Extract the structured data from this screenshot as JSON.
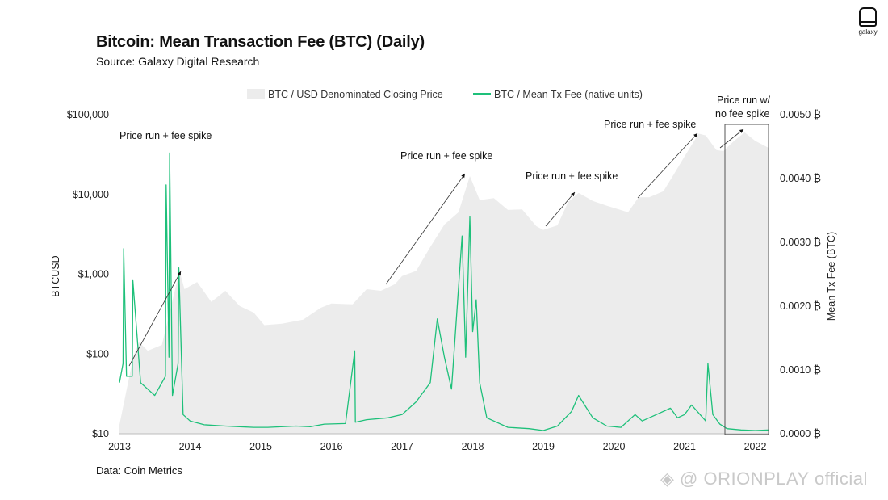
{
  "header": {
    "title": "Bitcoin: Mean Transaction Fee (BTC) (Daily)",
    "subtitle": "Source: Galaxy Digital Research"
  },
  "footer": {
    "note": "Data: Coin Metrics"
  },
  "logo": {
    "text": "galaxy",
    "icon": "galaxy-logo-icon"
  },
  "watermark": {
    "text": "@ ORIONPLAY official",
    "icon": "diamond-logo-icon"
  },
  "colors": {
    "price_area": "#ececec",
    "fee_line": "#1ec07a",
    "box": "#555555"
  },
  "chart_data": {
    "type": "area",
    "x_ticks": [
      "2013",
      "2014",
      "2015",
      "2016",
      "2017",
      "2018",
      "2019",
      "2020",
      "2021",
      "2022"
    ],
    "y_left": {
      "label": "BTCUSD",
      "scale": "log",
      "range": [
        10,
        100000
      ],
      "ticks": [
        "$10",
        "$100",
        "$1,000",
        "$10,000",
        "$100,000"
      ]
    },
    "y_right": {
      "label": "Mean Tx Fee (BTC)",
      "range": [
        0,
        0.005
      ],
      "ticks": [
        "0.0000 ₿",
        "0.0010 ₿",
        "0.0020 ₿",
        "0.0030 ₿",
        "0.0040 ₿",
        "0.0050 ₿"
      ]
    },
    "legend": {
      "placement": "top-center",
      "items": [
        "BTC / USD Denominated Closing Price",
        "BTC / Mean Tx Fee (native units)"
      ]
    },
    "series": [
      {
        "name": "BTC / USD Denominated Closing Price",
        "axis": "left",
        "x": [
          2013.0,
          2013.2,
          2013.28,
          2013.4,
          2013.6,
          2013.85,
          2013.92,
          2014.1,
          2014.3,
          2014.5,
          2014.7,
          2014.9,
          2015.05,
          2015.3,
          2015.6,
          2015.85,
          2016.0,
          2016.3,
          2016.5,
          2016.7,
          2016.9,
          2017.0,
          2017.2,
          2017.4,
          2017.6,
          2017.8,
          2017.96,
          2018.1,
          2018.3,
          2018.5,
          2018.7,
          2018.9,
          2019.0,
          2019.2,
          2019.35,
          2019.5,
          2019.7,
          2019.9,
          2020.2,
          2020.35,
          2020.5,
          2020.7,
          2020.85,
          2021.0,
          2021.2,
          2021.3,
          2021.45,
          2021.55,
          2021.7,
          2021.85,
          2022.0,
          2022.2
        ],
        "values": [
          13,
          95,
          140,
          110,
          130,
          1100,
          650,
          800,
          450,
          620,
          400,
          330,
          230,
          240,
          270,
          380,
          430,
          420,
          650,
          620,
          750,
          950,
          1100,
          2200,
          4200,
          6000,
          17000,
          8500,
          9000,
          6400,
          6500,
          4000,
          3600,
          4100,
          8000,
          10500,
          8300,
          7200,
          6000,
          9200,
          9200,
          11000,
          18000,
          30000,
          58000,
          55000,
          36000,
          35000,
          47000,
          60000,
          47000,
          38000
        ]
      },
      {
        "name": "BTC / Mean Tx Fee (native units)",
        "axis": "right",
        "x": [
          2013.0,
          2013.05,
          2013.06,
          2013.1,
          2013.18,
          2013.19,
          2013.3,
          2013.5,
          2013.65,
          2013.66,
          2013.7,
          2013.71,
          2013.75,
          2013.83,
          2013.84,
          2013.9,
          2014.0,
          2014.2,
          2014.5,
          2014.7,
          2014.9,
          2015.1,
          2015.5,
          2015.7,
          2015.9,
          2016.2,
          2016.33,
          2016.34,
          2016.5,
          2016.8,
          2017.0,
          2017.2,
          2017.4,
          2017.5,
          2017.6,
          2017.7,
          2017.85,
          2017.9,
          2017.96,
          2018.0,
          2018.05,
          2018.1,
          2018.2,
          2018.5,
          2018.8,
          2019.0,
          2019.2,
          2019.4,
          2019.5,
          2019.7,
          2019.9,
          2020.1,
          2020.3,
          2020.4,
          2020.6,
          2020.8,
          2020.9,
          2021.0,
          2021.1,
          2021.3,
          2021.33,
          2021.4,
          2021.5,
          2021.6,
          2021.8,
          2022.0,
          2022.2
        ],
        "values": [
          0.0008,
          0.0011,
          0.0029,
          0.0009,
          0.0009,
          0.0024,
          0.0008,
          0.0006,
          0.0009,
          0.0039,
          0.0012,
          0.0044,
          0.0006,
          0.0011,
          0.0026,
          0.0003,
          0.0002,
          0.00014,
          0.00012,
          0.00011,
          0.0001,
          0.0001,
          0.00012,
          0.00011,
          0.00015,
          0.00016,
          0.0013,
          0.00018,
          0.00022,
          0.00025,
          0.0003,
          0.0005,
          0.0008,
          0.0018,
          0.0012,
          0.0007,
          0.0031,
          0.0012,
          0.0034,
          0.0016,
          0.0021,
          0.0008,
          0.00025,
          0.0001,
          8e-05,
          5e-05,
          0.00012,
          0.00035,
          0.0006,
          0.00025,
          0.00012,
          0.0001,
          0.0003,
          0.0002,
          0.0003,
          0.0004,
          0.00025,
          0.0003,
          0.00045,
          0.0002,
          0.0011,
          0.0003,
          0.00015,
          8e-05,
          6e-05,
          5e-05,
          6e-05
        ]
      }
    ],
    "annotations": [
      "Price run + fee spike",
      "Price run + fee spike",
      "Price run + fee spike",
      "Price run + fee spike",
      "Price run w/",
      "no fee spike"
    ]
  }
}
